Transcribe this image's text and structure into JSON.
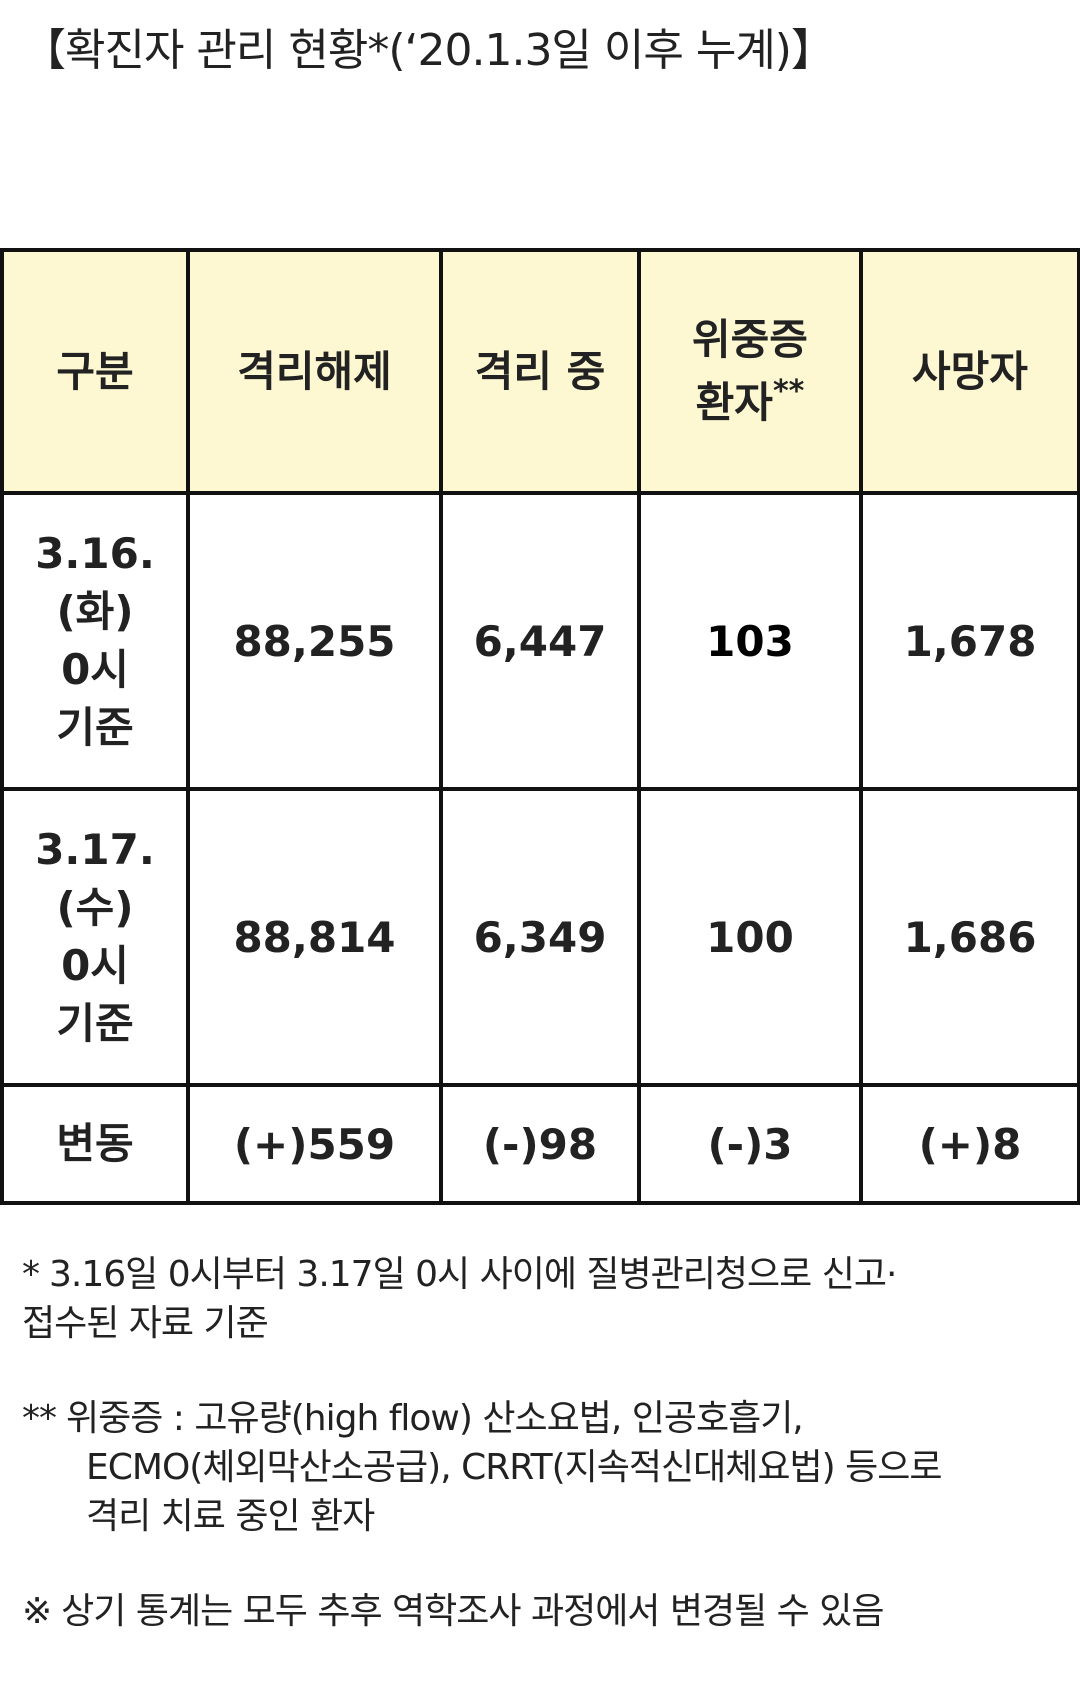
{
  "title": "【확진자 관리 현황*(‘20.1.3일 이후 누계)】",
  "table": {
    "header": [
      {
        "lines": [
          "구분"
        ]
      },
      {
        "lines": [
          "격리해제"
        ]
      },
      {
        "lines": [
          "격리 중"
        ]
      },
      {
        "lines": [
          "위중증",
          "환자"
        ],
        "sup": "**"
      },
      {
        "lines": [
          "사망자"
        ]
      }
    ],
    "rows": [
      {
        "label": [
          "3.16.",
          "(화)",
          "0시",
          "기준"
        ],
        "cells": [
          "88,255",
          "6,447",
          "103",
          "1,678"
        ]
      },
      {
        "label": [
          "3.17.",
          "(수)",
          "0시",
          "기준"
        ],
        "cells": [
          "88,814",
          "6,349",
          "100",
          "1,686"
        ]
      },
      {
        "label": [
          "변동"
        ],
        "cells": [
          "(+)559",
          "(-)98",
          "(-)3",
          "(+)8"
        ]
      }
    ]
  },
  "notes": [
    {
      "marker": "*",
      "lines": [
        "3.16일 0시부터 3.17일 0시 사이에 질병관리청으로 신고·",
        "접수된 자료 기준"
      ]
    },
    {
      "marker": "**",
      "lines": [
        "위중증 : 고유량(high flow) 산소요법, 인공호흡기,",
        "ECMO(체외막산소공급), CRRT(지속적신대체요법) 등으로",
        "격리 치료 중인 환자"
      ]
    },
    {
      "marker": "※",
      "lines": [
        "상기 통계는 모두 추후 역학조사 과정에서 변경될 수 있음"
      ]
    }
  ]
}
